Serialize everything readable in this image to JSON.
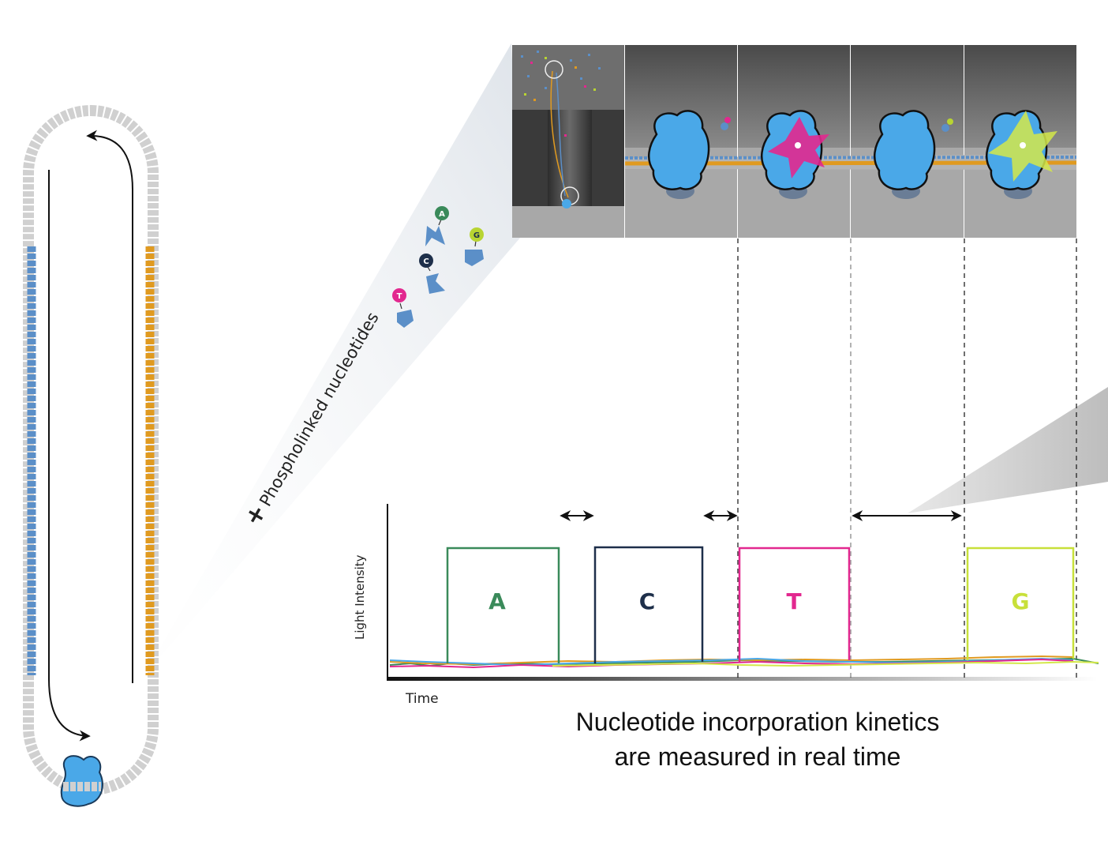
{
  "caption": {
    "line1": "Nucleotide incorporation kinetics",
    "line2": "are measured in real time"
  },
  "side_label": "+ Phospholinked nucleotides",
  "nucleotide_badges": [
    {
      "letter": "A",
      "color": "#3a8a5a"
    },
    {
      "letter": "C",
      "color": "#1e2f4a"
    },
    {
      "letter": "G",
      "color": "#b8d432"
    },
    {
      "letter": "T",
      "color": "#e2288f"
    }
  ],
  "plot": {
    "ylabel": "Light Intensity",
    "xlabel": "Time",
    "pulses": [
      {
        "label": "A",
        "color": "#3a8a5a"
      },
      {
        "label": "C",
        "color": "#1e2f4a"
      },
      {
        "label": "T",
        "color": "#e2288f"
      },
      {
        "label": "G",
        "color": "#b8d432"
      }
    ]
  },
  "colors": {
    "polymerase": "#4aa8e8",
    "strand_blue": "#5b8fc8",
    "strand_orange": "#e09a20",
    "panel_gray": "#8e8e8e"
  }
}
